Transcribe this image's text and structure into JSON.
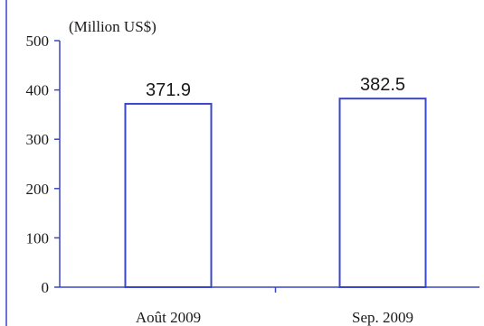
{
  "colors": {
    "bar_edge": "#3a46c8",
    "axis": "#3a46c8",
    "text": "#1a1a1a",
    "bar_fill": "#ffffff",
    "frame": "#3a46c8"
  },
  "chart_data": {
    "type": "bar",
    "title": "",
    "unit_label": "(Million US$)",
    "xlabel": "",
    "ylabel": "",
    "categories": [
      "Août 2009",
      "Sep. 2009"
    ],
    "values": [
      371.9,
      382.5
    ],
    "data_labels": [
      "371.9",
      "382.5"
    ],
    "ylim": [
      0,
      500
    ],
    "yticks": [
      0,
      100,
      200,
      300,
      400,
      500
    ],
    "ytick_labels": [
      "0",
      "100",
      "200",
      "300",
      "400",
      "500"
    ],
    "grid": false,
    "legend": "none"
  }
}
